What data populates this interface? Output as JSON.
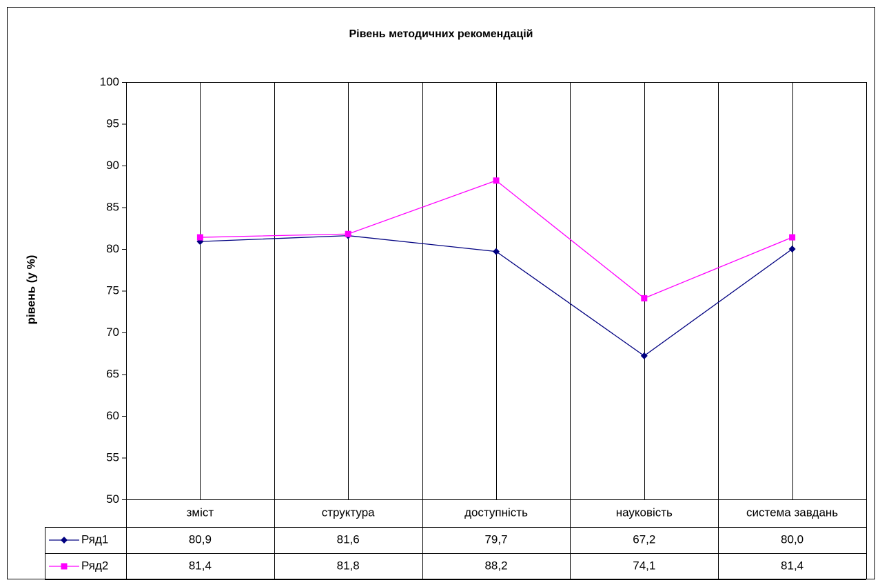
{
  "chart_data": {
    "type": "line",
    "title": "Рівень методичних рекомендацій",
    "y_label": "рівень (у %)",
    "categories": [
      "зміст",
      "структура",
      "доступність",
      "науковість",
      "система завдань"
    ],
    "series": [
      {
        "name": "Ряд1",
        "color": "#000080",
        "marker": "diamond",
        "values": [
          80.9,
          81.6,
          79.7,
          67.2,
          80.0
        ],
        "value_labels": [
          "80,9",
          "81,6",
          "79,7",
          "67,2",
          "80,0"
        ]
      },
      {
        "name": "Ряд2",
        "color": "#ff00ff",
        "marker": "square",
        "values": [
          81.4,
          81.8,
          88.2,
          74.1,
          81.4
        ],
        "value_labels": [
          "81,4",
          "81,8",
          "88,2",
          "74,1",
          "81,4"
        ]
      }
    ],
    "ylim": [
      50,
      100
    ],
    "yticks": [
      50,
      55,
      60,
      65,
      70,
      75,
      80,
      85,
      90,
      95,
      100
    ],
    "x_grid": true,
    "data_table": true
  }
}
